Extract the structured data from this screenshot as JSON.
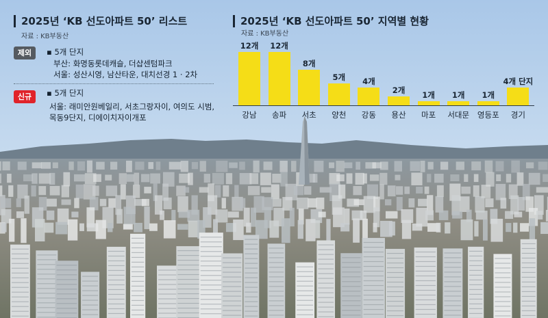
{
  "left_panel": {
    "title": "2025년 ‘KB 선도아파트 50’ 리스트",
    "source": "자료 : KB부동산",
    "removed": {
      "tag": "제외",
      "tag_color": "#555a60",
      "count": "5개 단지",
      "lines": [
        "부산: 화명동롯데캐슬, 더샵센텀파크",
        "서울: 성산시영, 남산타운, 대치선경 1 · 2차"
      ]
    },
    "added": {
      "tag": "신규",
      "tag_color": "#e0232a",
      "count": "5개 단지",
      "lines": [
        "서울: 래미안원베일리, 서초그랑자이, 여의도 시범,",
        "목동9단지, 디에이치자이개포"
      ]
    }
  },
  "chart_data": {
    "type": "bar",
    "title": "2025년 ‘KB 선도아파트 50’ 지역별 현황",
    "source": "자료 : KB부동산",
    "categories": [
      "강남",
      "송파",
      "서초",
      "양천",
      "강동",
      "용산",
      "마포",
      "서대문",
      "영등포",
      "경기"
    ],
    "values": [
      12,
      12,
      8,
      5,
      4,
      2,
      1,
      1,
      1,
      4
    ],
    "data_labels": [
      "12개",
      "12개",
      "8개",
      "5개",
      "4개",
      "2개",
      "1개",
      "1개",
      "1개",
      "4개 단지"
    ],
    "ylim": [
      0,
      12
    ],
    "bar_color": "#f5dd17",
    "grid": false,
    "legend": "none"
  }
}
